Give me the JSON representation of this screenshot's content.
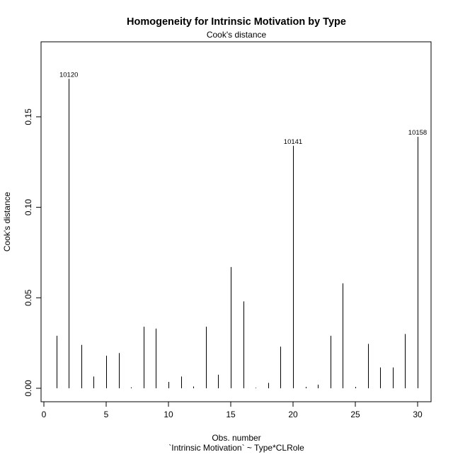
{
  "chart_data": {
    "type": "bar",
    "title": "Homogeneity for Intrinsic Motivation by Type",
    "subtitle": "Cook's distance",
    "xlabel": "Obs. number",
    "xlabel2": "`Intrinsic Motivation` ~ Type*CLRole",
    "ylabel": "Cook's distance",
    "xlim": [
      0,
      31
    ],
    "ylim": [
      0,
      0.18
    ],
    "x_ticks": [
      0,
      5,
      10,
      15,
      20,
      25,
      30
    ],
    "x_tick_labels": [
      "0",
      "5",
      "10",
      "15",
      "20",
      "25",
      "30"
    ],
    "y_ticks": [
      0.0,
      0.05,
      0.1,
      0.15
    ],
    "y_tick_labels": [
      "0.00",
      "0.05",
      "0.10",
      "0.15"
    ],
    "grid": false,
    "x": [
      1,
      2,
      3,
      4,
      5,
      6,
      7,
      8,
      9,
      10,
      11,
      12,
      13,
      14,
      15,
      16,
      17,
      18,
      19,
      20,
      21,
      22,
      23,
      24,
      25,
      26,
      27,
      28,
      29,
      30
    ],
    "values": [
      0.029,
      0.171,
      0.024,
      0.0065,
      0.018,
      0.0195,
      0.0005,
      0.034,
      0.033,
      0.0035,
      0.0065,
      0.001,
      0.034,
      0.0075,
      0.067,
      0.048,
      0.0003,
      0.003,
      0.023,
      0.134,
      0.0008,
      0.002,
      0.029,
      0.058,
      0.0008,
      0.0245,
      0.0115,
      0.0115,
      0.03,
      0.139
    ],
    "annotations": [
      {
        "x": 2,
        "y": 0.171,
        "text": "10120"
      },
      {
        "x": 20,
        "y": 0.134,
        "text": "10141"
      },
      {
        "x": 30,
        "y": 0.139,
        "text": "10158"
      }
    ]
  }
}
